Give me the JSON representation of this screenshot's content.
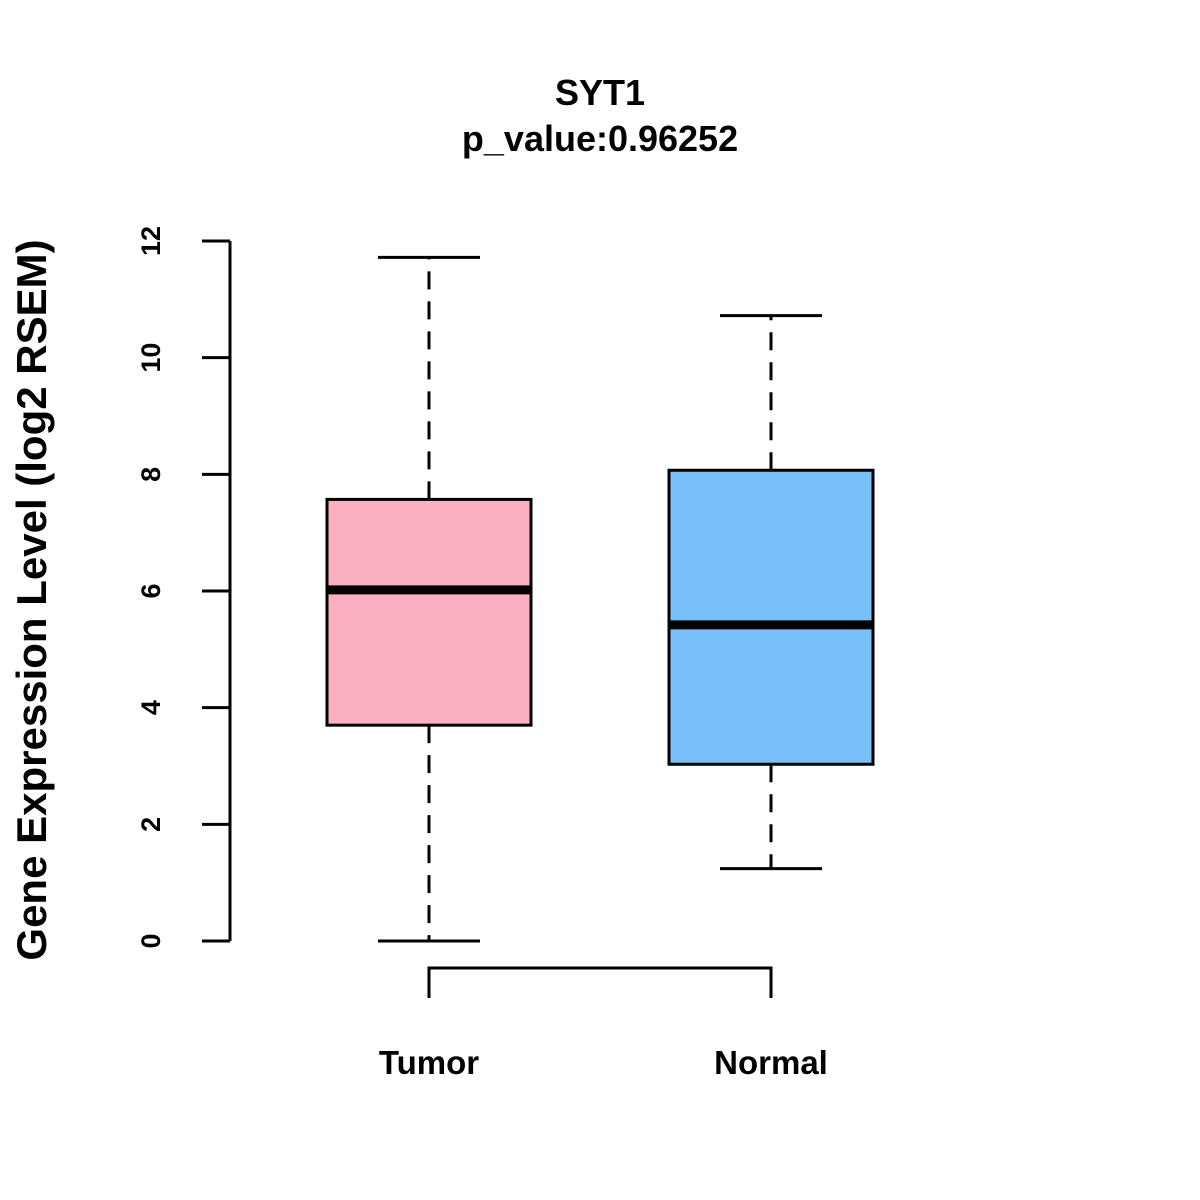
{
  "chart_data": {
    "type": "boxplot",
    "title": "SYT1",
    "subtitle": "p_value:0.96252",
    "xlabel": "",
    "ylabel": "Gene Expression Level (log2 RSEM)",
    "ylim": [
      0,
      12
    ],
    "yticks": [
      0,
      2,
      4,
      6,
      8,
      10,
      12
    ],
    "grid": false,
    "categories": [
      "Tumor",
      "Normal"
    ],
    "boxes": [
      {
        "name": "Tumor",
        "min": 0.0,
        "q1": 3.7,
        "median": 6.02,
        "q3": 7.57,
        "max": 11.72,
        "color": "#FBB1C1"
      },
      {
        "name": "Normal",
        "min": 1.24,
        "q1": 3.03,
        "median": 5.42,
        "q3": 8.07,
        "max": 10.72,
        "color": "#77C1F8"
      }
    ],
    "comparison_bracket": [
      "Tumor",
      "Normal"
    ]
  }
}
